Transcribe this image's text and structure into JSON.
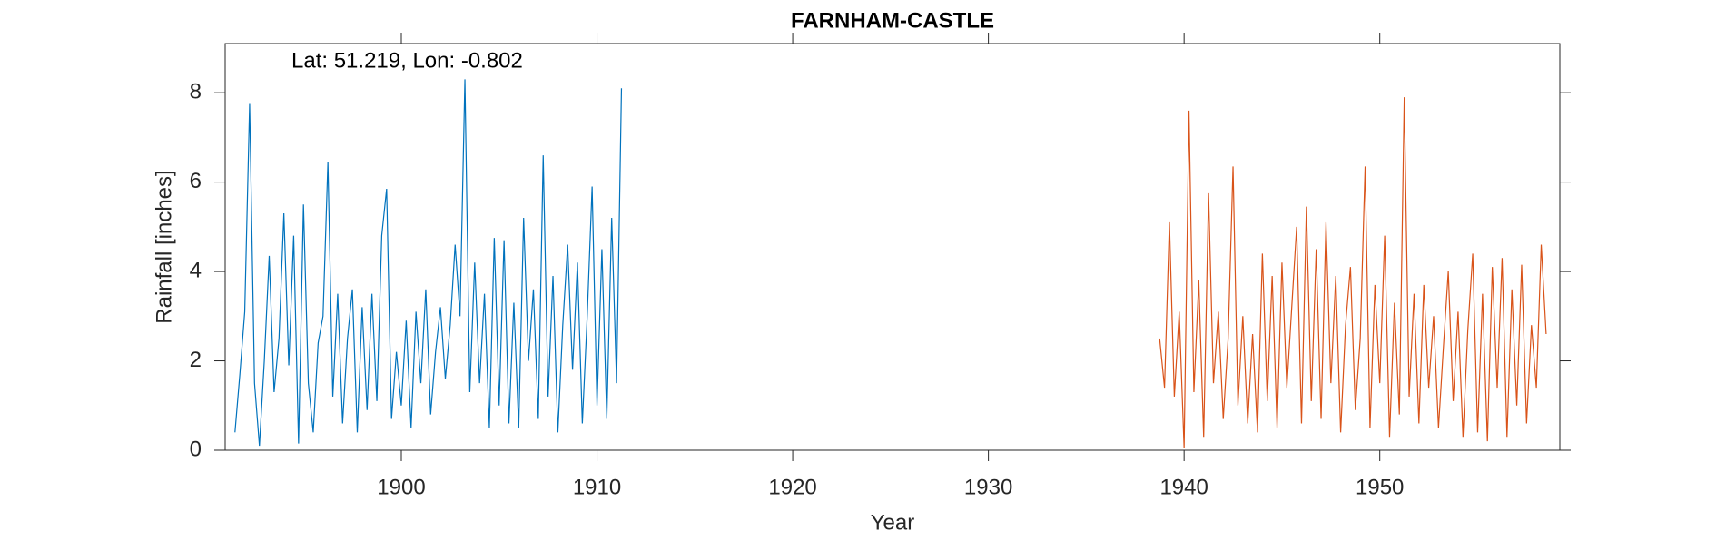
{
  "chart_data": {
    "type": "line",
    "title": "FARNHAM-CASTLE",
    "annotation": "Lat: 51.219, Lon: -0.802",
    "xlabel": "Year",
    "ylabel": "Rainfall [inches]",
    "xlim": [
      1891.0,
      1959.2
    ],
    "xticks": [
      1900,
      1910,
      1920,
      1930,
      1940,
      1950
    ],
    "ylim": [
      0,
      9.1
    ],
    "yticks": [
      0,
      2,
      4,
      6,
      8
    ],
    "grid": false,
    "series": [
      {
        "color": "#0072BD",
        "x": [
          1891.5,
          1891.75,
          1892,
          1892.25,
          1892.5,
          1892.75,
          1893,
          1893.25,
          1893.5,
          1893.75,
          1894,
          1894.25,
          1894.5,
          1894.75,
          1895,
          1895.25,
          1895.5,
          1895.75,
          1896,
          1896.25,
          1896.5,
          1896.75,
          1897,
          1897.25,
          1897.5,
          1897.75,
          1898,
          1898.25,
          1898.5,
          1898.75,
          1899,
          1899.25,
          1899.5,
          1899.75,
          1900,
          1900.25,
          1900.5,
          1900.75,
          1901,
          1901.25,
          1901.5,
          1901.75,
          1902,
          1902.25,
          1902.5,
          1902.75,
          1903,
          1903.25,
          1903.5,
          1903.75,
          1904,
          1904.25,
          1904.5,
          1904.75,
          1905,
          1905.25,
          1905.5,
          1905.75,
          1906,
          1906.25,
          1906.5,
          1906.75,
          1907,
          1907.25,
          1907.5,
          1907.75,
          1908,
          1908.25,
          1908.5,
          1908.75,
          1909,
          1909.25,
          1909.5,
          1909.75,
          1910,
          1910.25,
          1910.5,
          1910.75,
          1911,
          1911.25
        ],
        "values": [
          0.4,
          1.7,
          3.1,
          7.75,
          1.5,
          0.1,
          2.0,
          4.35,
          1.3,
          2.5,
          5.3,
          1.9,
          4.8,
          0.15,
          5.5,
          1.5,
          0.4,
          2.4,
          3.0,
          6.45,
          1.2,
          3.5,
          0.6,
          2.5,
          3.6,
          0.4,
          3.2,
          0.9,
          3.5,
          1.1,
          4.8,
          5.85,
          0.7,
          2.2,
          1.0,
          2.9,
          0.5,
          3.1,
          1.5,
          3.6,
          0.8,
          2.2,
          3.2,
          1.6,
          2.8,
          4.6,
          3.0,
          8.3,
          1.3,
          4.2,
          1.5,
          3.5,
          0.5,
          4.75,
          1.0,
          4.7,
          0.6,
          3.3,
          0.5,
          5.2,
          2.0,
          3.6,
          0.7,
          6.6,
          1.2,
          3.9,
          0.4,
          2.8,
          4.6,
          1.8,
          4.2,
          0.6,
          3.0,
          5.9,
          1.0,
          4.5,
          0.7,
          5.2,
          1.5,
          8.1
        ]
      },
      {
        "color": "#D95319",
        "x": [
          1938.75,
          1939,
          1939.25,
          1939.5,
          1939.75,
          1940,
          1940.25,
          1940.5,
          1940.75,
          1941,
          1941.25,
          1941.5,
          1941.75,
          1942,
          1942.25,
          1942.5,
          1942.75,
          1943,
          1943.25,
          1943.5,
          1943.75,
          1944,
          1944.25,
          1944.5,
          1944.75,
          1945,
          1945.25,
          1945.5,
          1945.75,
          1946,
          1946.25,
          1946.5,
          1946.75,
          1947,
          1947.25,
          1947.5,
          1947.75,
          1948,
          1948.25,
          1948.5,
          1948.75,
          1949,
          1949.25,
          1949.5,
          1949.75,
          1950,
          1950.25,
          1950.5,
          1950.75,
          1951,
          1951.25,
          1951.5,
          1951.75,
          1952,
          1952.25,
          1952.5,
          1952.75,
          1953,
          1953.25,
          1953.5,
          1953.75,
          1954,
          1954.25,
          1954.5,
          1954.75,
          1955,
          1955.25,
          1955.5,
          1955.75,
          1956,
          1956.25,
          1956.5,
          1956.75,
          1957,
          1957.25,
          1957.5,
          1957.75,
          1958,
          1958.25,
          1958.5
        ],
        "values": [
          2.5,
          1.4,
          5.1,
          1.2,
          3.1,
          0.05,
          7.6,
          1.3,
          3.8,
          0.3,
          5.75,
          1.5,
          3.1,
          0.7,
          2.5,
          6.35,
          1.0,
          3.0,
          0.6,
          2.6,
          0.4,
          4.4,
          1.1,
          3.9,
          0.5,
          4.2,
          1.4,
          3.2,
          5.0,
          0.6,
          5.45,
          1.1,
          4.5,
          0.7,
          5.1,
          1.5,
          3.9,
          0.4,
          2.8,
          4.1,
          0.9,
          2.5,
          6.35,
          0.5,
          3.7,
          1.5,
          4.8,
          0.3,
          3.3,
          0.8,
          7.9,
          1.2,
          3.5,
          0.6,
          3.7,
          1.4,
          3.0,
          0.5,
          2.3,
          4.0,
          1.1,
          3.1,
          0.3,
          2.7,
          4.4,
          0.4,
          3.5,
          0.2,
          4.1,
          1.4,
          4.3,
          0.3,
          3.6,
          1.0,
          4.15,
          0.6,
          2.8,
          1.4,
          4.6,
          2.6
        ]
      }
    ]
  }
}
